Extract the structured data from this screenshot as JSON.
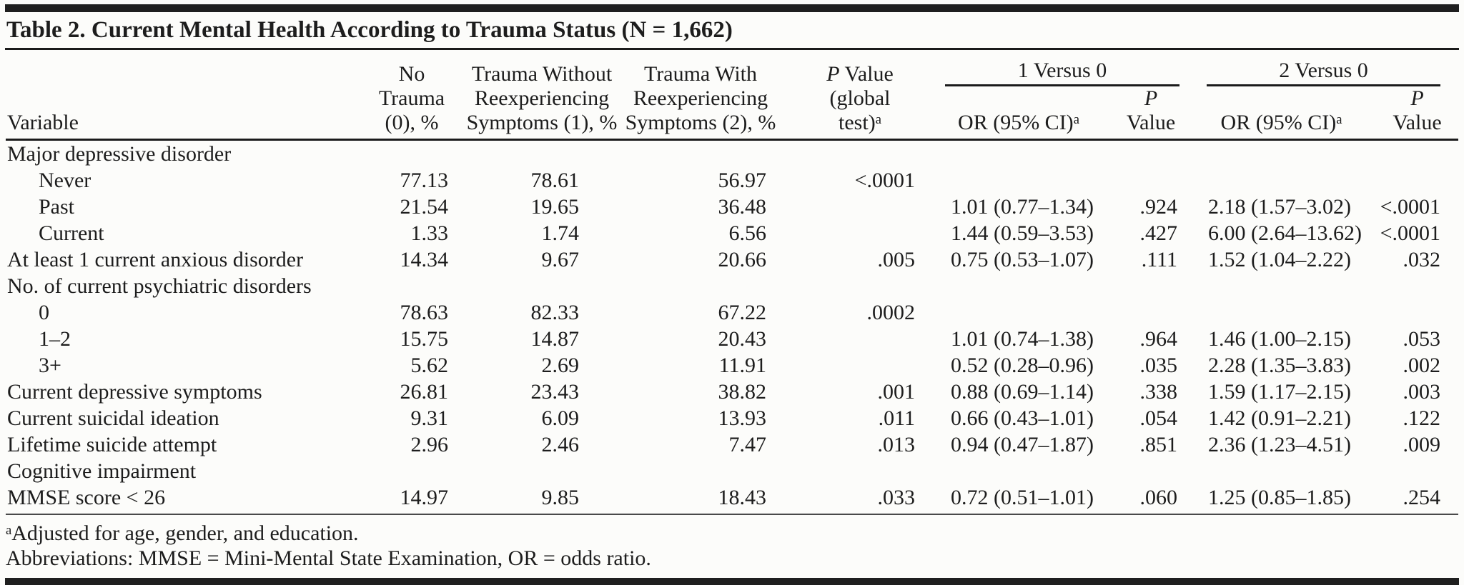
{
  "title": "Table 2. Current Mental Health According to Trauma Status (N = 1,662)",
  "header": {
    "variable": "Variable",
    "no_trauma": {
      "l1": "No",
      "l2": "Trauma",
      "l3": "(0), %"
    },
    "trauma_without": {
      "l1": "Trauma Without",
      "l2": "Reexperiencing",
      "l3": "Symptoms (1), %"
    },
    "trauma_with": {
      "l1": "Trauma With",
      "l2": "Reexperiencing",
      "l3": "Symptoms (2), %"
    },
    "p_global": {
      "p": "P",
      "after_p": " Value",
      "l2": "(global",
      "l3": "test)",
      "sup": "a"
    },
    "group1": "1 Versus 0",
    "group2": "2 Versus 0",
    "or_label": "OR (95% CI)",
    "or_sup": "a",
    "p_italic": "P",
    "value_word": "Value"
  },
  "rows": [
    {
      "label": "Major depressive disorder",
      "indent": 0,
      "no_trauma": "",
      "trauma_without": "",
      "trauma_with": "",
      "p_global": "",
      "or1": "",
      "p1": "",
      "or2": "",
      "p2": ""
    },
    {
      "label": "Never",
      "indent": 1,
      "no_trauma": "77.13",
      "trauma_without": "78.61",
      "trauma_with": "56.97",
      "p_global": "<.0001",
      "or1": "",
      "p1": "",
      "or2": "",
      "p2": ""
    },
    {
      "label": "Past",
      "indent": 1,
      "no_trauma": "21.54",
      "trauma_without": "19.65",
      "trauma_with": "36.48",
      "p_global": "",
      "or1": "1.01 (0.77–1.34)",
      "p1": ".924",
      "or2": "2.18 (1.57–3.02)",
      "p2": "<.0001"
    },
    {
      "label": "Current",
      "indent": 1,
      "no_trauma": "1.33",
      "trauma_without": "1.74",
      "trauma_with": "6.56",
      "p_global": "",
      "or1": "1.44 (0.59–3.53)",
      "p1": ".427",
      "or2": "6.00 (2.64–13.62)",
      "p2": "<.0001"
    },
    {
      "label": "At least 1 current anxious disorder",
      "indent": 0,
      "no_trauma": "14.34",
      "trauma_without": "9.67",
      "trauma_with": "20.66",
      "p_global": ".005",
      "or1": "0.75 (0.53–1.07)",
      "p1": ".111",
      "or2": "1.52 (1.04–2.22)",
      "p2": ".032"
    },
    {
      "label": "No. of current psychiatric disorders",
      "indent": 0,
      "no_trauma": "",
      "trauma_without": "",
      "trauma_with": "",
      "p_global": "",
      "or1": "",
      "p1": "",
      "or2": "",
      "p2": ""
    },
    {
      "label": "0",
      "indent": 1,
      "no_trauma": "78.63",
      "trauma_without": "82.33",
      "trauma_with": "67.22",
      "p_global": ".0002",
      "or1": "",
      "p1": "",
      "or2": "",
      "p2": ""
    },
    {
      "label": "1–2",
      "indent": 1,
      "no_trauma": "15.75",
      "trauma_without": "14.87",
      "trauma_with": "20.43",
      "p_global": "",
      "or1": "1.01 (0.74–1.38)",
      "p1": ".964",
      "or2": "1.46 (1.00–2.15)",
      "p2": ".053"
    },
    {
      "label": "3+",
      "indent": 1,
      "no_trauma": "5.62",
      "trauma_without": "2.69",
      "trauma_with": "11.91",
      "p_global": "",
      "or1": "0.52 (0.28–0.96)",
      "p1": ".035",
      "or2": "2.28 (1.35–3.83)",
      "p2": ".002"
    },
    {
      "label": "Current depressive symptoms",
      "indent": 0,
      "no_trauma": "26.81",
      "trauma_without": "23.43",
      "trauma_with": "38.82",
      "p_global": ".001",
      "or1": "0.88 (0.69–1.14)",
      "p1": ".338",
      "or2": "1.59 (1.17–2.15)",
      "p2": ".003"
    },
    {
      "label": "Current suicidal ideation",
      "indent": 0,
      "no_trauma": "9.31",
      "trauma_without": "6.09",
      "trauma_with": "13.93",
      "p_global": ".011",
      "or1": "0.66 (0.43–1.01)",
      "p1": ".054",
      "or2": "1.42 (0.91–2.21)",
      "p2": ".122"
    },
    {
      "label": "Lifetime suicide attempt",
      "indent": 0,
      "no_trauma": "2.96",
      "trauma_without": "2.46",
      "trauma_with": "7.47",
      "p_global": ".013",
      "or1": "0.94 (0.47–1.87)",
      "p1": ".851",
      "or2": "2.36 (1.23–4.51)",
      "p2": ".009"
    },
    {
      "label": "Cognitive impairment",
      "indent": 0,
      "no_trauma": "",
      "trauma_without": "",
      "trauma_with": "",
      "p_global": "",
      "or1": "",
      "p1": "",
      "or2": "",
      "p2": ""
    },
    {
      "label": "MMSE score < 26",
      "indent": 0,
      "no_trauma": "14.97",
      "trauma_without": "9.85",
      "trauma_with": "18.43",
      "p_global": ".033",
      "or1": "0.72 (0.51–1.01)",
      "p1": ".060",
      "or2": "1.25 (0.85–1.85)",
      "p2": ".254"
    }
  ],
  "footnotes": {
    "sup": "a",
    "adjusted": "Adjusted for age, gender, and education.",
    "abbreviations": "Abbreviations: MMSE = Mini-Mental State Examination, OR = odds ratio."
  }
}
